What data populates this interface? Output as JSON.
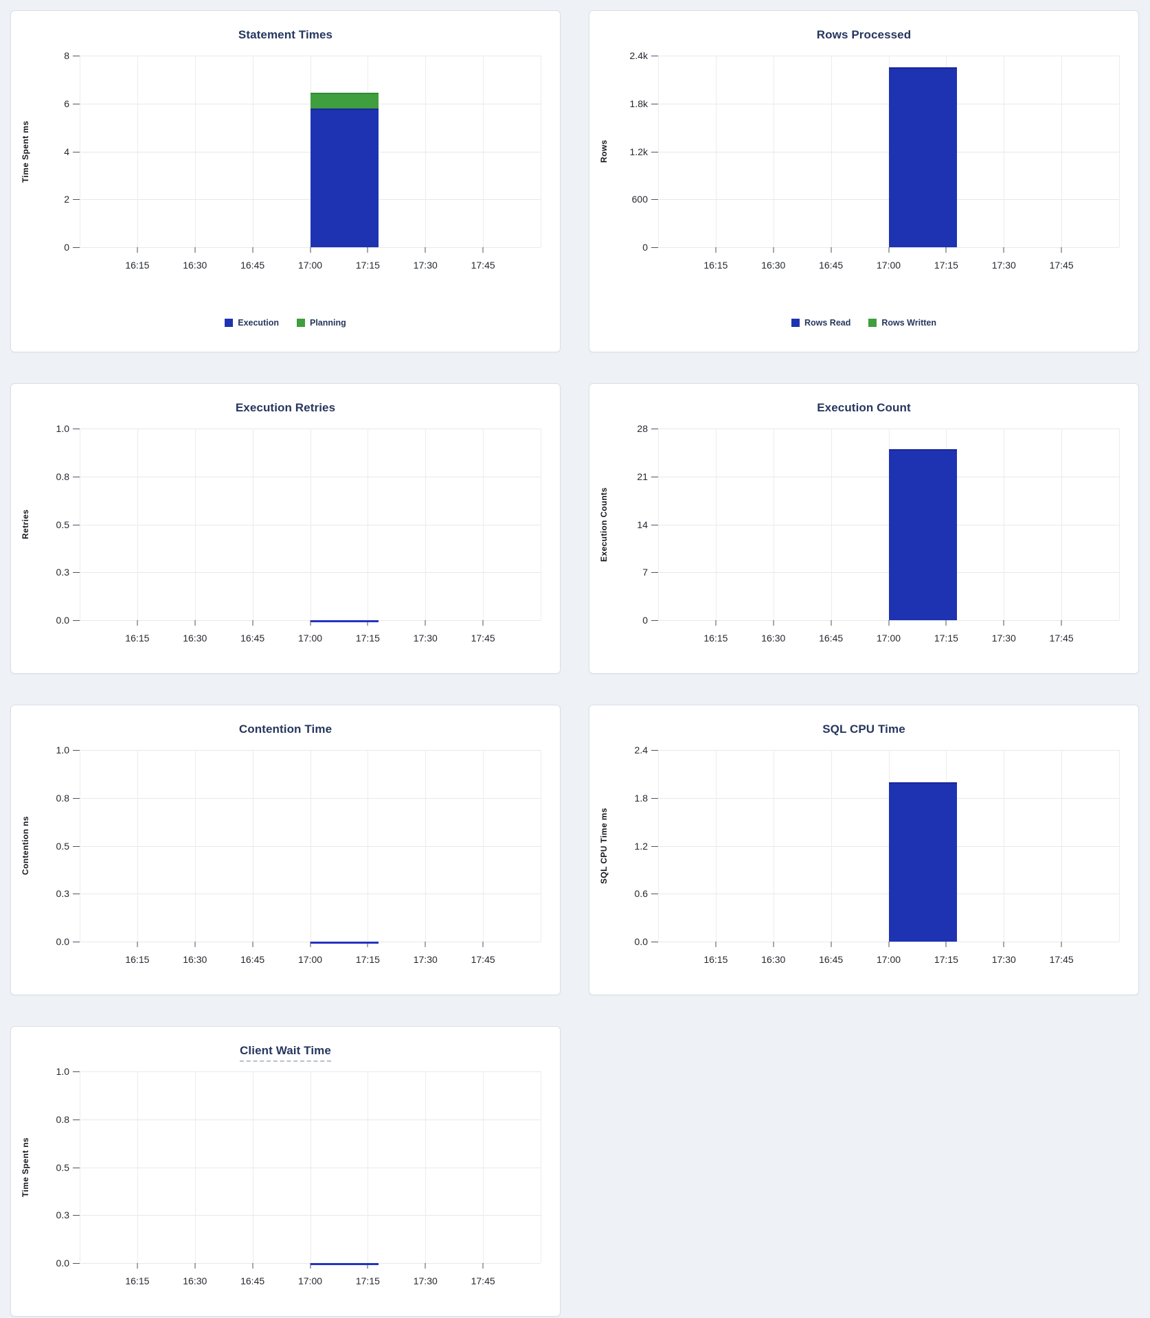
{
  "page": {
    "background_color": "#eef2f7"
  },
  "palette": {
    "blue": "#1e33b2",
    "blue_edge": "#18269b",
    "green": "#3f9e3d",
    "green_edge": "#2e8c31",
    "zero_line": "#2433c0",
    "title_color": "#26365e",
    "tick_color": "#24282f",
    "grid_color": "#e7e8ea",
    "legend_text_color": "#26365e",
    "panel_border": "#d9dfe8"
  },
  "chart_data": [
    {
      "slug": "statement-times",
      "type": "bar",
      "title": "Statement Times",
      "ylabel": "Time Spent ms",
      "ymax": 8,
      "ytick_labels": [
        "0",
        "2",
        "4",
        "6",
        "8"
      ],
      "xtick_labels": [
        "16:15",
        "16:30",
        "16:45",
        "17:00",
        "17:15",
        "17:30",
        "17:45"
      ],
      "x_domain": [
        "16:00",
        "18:00"
      ],
      "stacked": true,
      "grid": true,
      "legend_position": "bottom-center",
      "series": [
        {
          "name": "Execution",
          "color": "blue",
          "value": 5.8,
          "unit": "ms"
        },
        {
          "name": "Planning",
          "color": "green",
          "value": 0.65,
          "unit": "ms"
        }
      ],
      "bar_span": {
        "x_start": "17:00",
        "x_end": "17:17",
        "frac_start": 0.5,
        "frac_end": 0.648
      },
      "legend": [
        {
          "label": "Execution",
          "color": "blue"
        },
        {
          "label": "Planning",
          "color": "green"
        }
      ]
    },
    {
      "slug": "rows-processed",
      "type": "bar",
      "title": "Rows Processed",
      "ylabel": "Rows",
      "ymax": 2400,
      "ytick_labels": [
        "0",
        "600",
        "1.2k",
        "1.8k",
        "2.4k"
      ],
      "xtick_labels": [
        "16:15",
        "16:30",
        "16:45",
        "17:00",
        "17:15",
        "17:30",
        "17:45"
      ],
      "x_domain": [
        "16:00",
        "18:00"
      ],
      "stacked": true,
      "grid": true,
      "legend_position": "bottom-center",
      "series": [
        {
          "name": "Rows Read",
          "color": "blue",
          "value": 2250,
          "unit": "rows"
        },
        {
          "name": "Rows Written",
          "color": "green",
          "value": 0,
          "unit": "rows"
        }
      ],
      "bar_span": {
        "x_start": "17:00",
        "x_end": "17:17",
        "frac_start": 0.5,
        "frac_end": 0.648
      },
      "legend": [
        {
          "label": "Rows Read",
          "color": "blue"
        },
        {
          "label": "Rows Written",
          "color": "green"
        }
      ]
    },
    {
      "slug": "execution-retries",
      "type": "line",
      "title": "Execution Retries",
      "ylabel": "Retries",
      "ymax": 1,
      "ytick_labels": [
        "0.0",
        "0.3",
        "0.5",
        "0.8",
        "1.0"
      ],
      "xtick_labels": [
        "16:15",
        "16:30",
        "16:45",
        "17:00",
        "17:15",
        "17:30",
        "17:45"
      ],
      "x_domain": [
        "16:00",
        "18:00"
      ],
      "grid": true,
      "series": [
        {
          "name": "Retries",
          "color": "blue",
          "value": 0,
          "unit": "retries"
        }
      ],
      "bar_span": {
        "x_start": "17:00",
        "x_end": "17:17",
        "frac_start": 0.5,
        "frac_end": 0.648
      }
    },
    {
      "slug": "execution-count",
      "type": "bar",
      "title": "Execution Count",
      "ylabel": "Execution Counts",
      "ymax": 28,
      "ytick_labels": [
        "0",
        "7",
        "14",
        "21",
        "28"
      ],
      "xtick_labels": [
        "16:15",
        "16:30",
        "16:45",
        "17:00",
        "17:15",
        "17:30",
        "17:45"
      ],
      "x_domain": [
        "16:00",
        "18:00"
      ],
      "grid": true,
      "series": [
        {
          "name": "Execution Count",
          "color": "blue",
          "value": 25,
          "unit": "executions"
        }
      ],
      "bar_span": {
        "x_start": "17:00",
        "x_end": "17:17",
        "frac_start": 0.5,
        "frac_end": 0.648
      }
    },
    {
      "slug": "contention-time",
      "type": "line",
      "title": "Contention Time",
      "ylabel": "Contention ns",
      "ymax": 1,
      "ytick_labels": [
        "0.0",
        "0.3",
        "0.5",
        "0.8",
        "1.0"
      ],
      "xtick_labels": [
        "16:15",
        "16:30",
        "16:45",
        "17:00",
        "17:15",
        "17:30",
        "17:45"
      ],
      "x_domain": [
        "16:00",
        "18:00"
      ],
      "grid": true,
      "series": [
        {
          "name": "Contention",
          "color": "blue",
          "value": 0,
          "unit": "ns"
        }
      ],
      "bar_span": {
        "x_start": "17:00",
        "x_end": "17:17",
        "frac_start": 0.5,
        "frac_end": 0.648
      }
    },
    {
      "slug": "sql-cpu-time",
      "type": "bar",
      "title": "SQL CPU Time",
      "ylabel": "SQL CPU Time ms",
      "ymax": 2.4,
      "ytick_labels": [
        "0.0",
        "0.6",
        "1.2",
        "1.8",
        "2.4"
      ],
      "xtick_labels": [
        "16:15",
        "16:30",
        "16:45",
        "17:00",
        "17:15",
        "17:30",
        "17:45"
      ],
      "x_domain": [
        "16:00",
        "18:00"
      ],
      "grid": true,
      "series": [
        {
          "name": "SQL CPU Time",
          "color": "blue",
          "value": 2.0,
          "unit": "ms"
        }
      ],
      "bar_span": {
        "x_start": "17:00",
        "x_end": "17:17",
        "frac_start": 0.5,
        "frac_end": 0.648
      }
    },
    {
      "slug": "client-wait-time",
      "type": "line",
      "title": "Client Wait Time",
      "title_underlined": true,
      "ylabel": "Time Spent ns",
      "ymax": 1,
      "ytick_labels": [
        "0.0",
        "0.3",
        "0.5",
        "0.8",
        "1.0"
      ],
      "xtick_labels": [
        "16:15",
        "16:30",
        "16:45",
        "17:00",
        "17:15",
        "17:30",
        "17:45"
      ],
      "x_domain": [
        "16:00",
        "18:00"
      ],
      "grid": true,
      "series": [
        {
          "name": "Client Wait",
          "color": "blue",
          "value": 0,
          "unit": "ns"
        }
      ],
      "bar_span": {
        "x_start": "17:00",
        "x_end": "17:17",
        "frac_start": 0.5,
        "frac_end": 0.648
      }
    }
  ]
}
